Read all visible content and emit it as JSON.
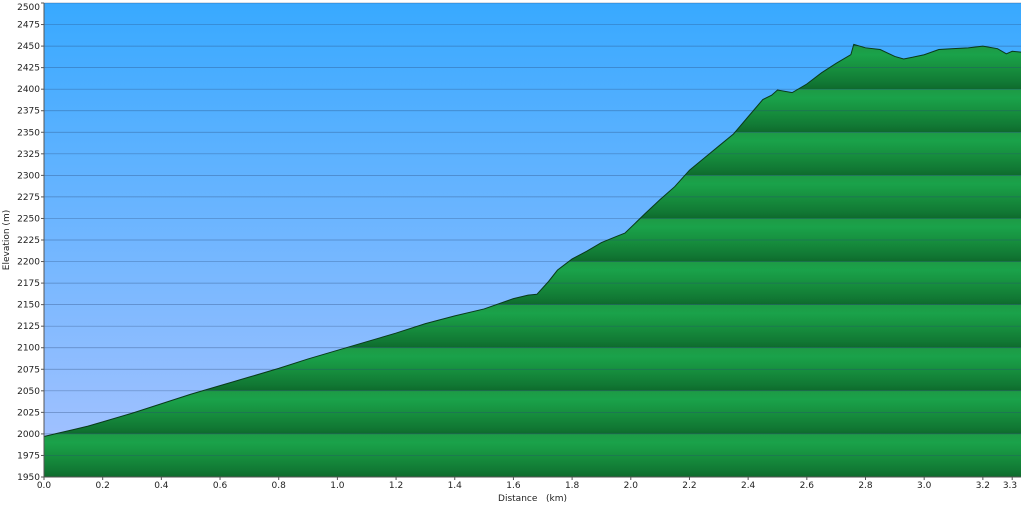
{
  "chart_data": {
    "type": "area",
    "xlabel": "Distance   (km)",
    "ylabel": "Elevation (m)",
    "xlim": [
      0,
      3.33
    ],
    "ylim": [
      1950,
      2500
    ],
    "x_ticks": [
      0.0,
      0.2,
      0.4,
      0.6,
      0.8,
      1.0,
      1.2,
      1.4,
      1.6,
      1.8,
      2.0,
      2.2,
      2.4,
      2.6,
      2.8,
      3.0,
      3.2,
      3.3
    ],
    "x_tick_labels": [
      "0.0",
      "0.2",
      "0.4",
      "0.6",
      "0.8",
      "1.0",
      "1.2",
      "1.4",
      "1.6",
      "1.8",
      "2.0",
      "2.2",
      "2.4",
      "2.6",
      "2.8",
      "3.0",
      "3.2",
      "3.3"
    ],
    "y_ticks": [
      1950,
      1975,
      2000,
      2025,
      2050,
      2075,
      2100,
      2125,
      2150,
      2175,
      2200,
      2225,
      2250,
      2275,
      2300,
      2325,
      2350,
      2375,
      2400,
      2425,
      2450,
      2475,
      2500
    ],
    "y_tick_labels": [
      "1950",
      "1975",
      "2000",
      "2025",
      "2050",
      "2075",
      "2100",
      "2125",
      "2150",
      "2175",
      "2200",
      "2225",
      "2250",
      "2275",
      "2300",
      "2325",
      "2350",
      "2375",
      "2400",
      "2425",
      "2450",
      "2475",
      "2500"
    ],
    "grid": true,
    "series": [
      {
        "x": [
          0.0,
          0.05,
          0.1,
          0.15,
          0.2,
          0.3,
          0.4,
          0.5,
          0.6,
          0.7,
          0.8,
          0.9,
          1.0,
          1.1,
          1.2,
          1.3,
          1.4,
          1.5,
          1.6,
          1.65,
          1.68,
          1.72,
          1.75,
          1.8,
          1.85,
          1.9,
          1.95,
          1.98,
          2.05,
          2.1,
          2.15,
          2.2,
          2.25,
          2.3,
          2.35,
          2.4,
          2.45,
          2.48,
          2.5,
          2.55,
          2.6,
          2.65,
          2.7,
          2.75,
          2.76,
          2.8,
          2.85,
          2.9,
          2.93,
          2.96,
          3.0,
          3.05,
          3.1,
          3.15,
          3.2,
          3.25,
          3.28,
          3.3,
          3.33
        ],
        "y": [
          1997,
          2001,
          2005,
          2009,
          2014,
          2024,
          2035,
          2046,
          2056,
          2066,
          2076,
          2087,
          2097,
          2107,
          2117,
          2128,
          2137,
          2145,
          2157,
          2161,
          2162,
          2177,
          2190,
          2203,
          2212,
          2222,
          2229,
          2233,
          2256,
          2272,
          2287,
          2306,
          2320,
          2334,
          2348,
          2368,
          2388,
          2393,
          2399,
          2396,
          2406,
          2419,
          2430,
          2440,
          2452,
          2448,
          2446,
          2438,
          2435,
          2437,
          2440,
          2446,
          2447,
          2448,
          2450,
          2447,
          2441,
          2444,
          2443
        ]
      }
    ]
  }
}
